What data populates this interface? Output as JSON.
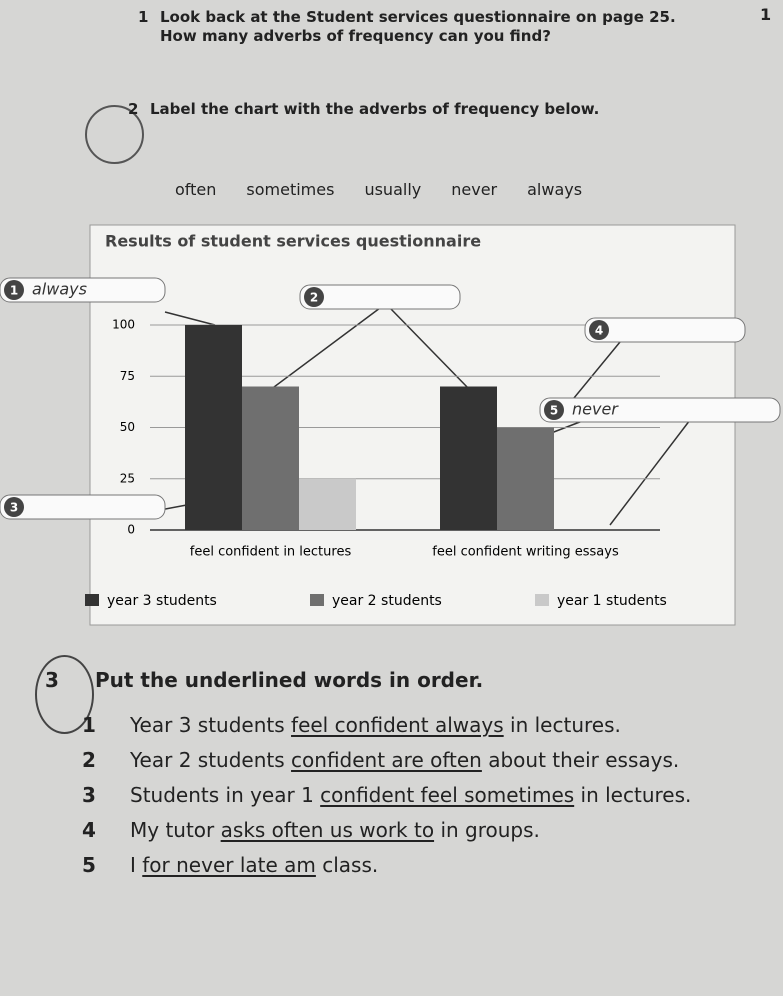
{
  "page_number": "1",
  "exercises": [
    {
      "number": "1",
      "text": "Look back at the Student services questionnaire on page 25. How many adverbs of frequency can you find?"
    },
    {
      "number": "2",
      "text": "Label the chart with the adverbs of frequency below."
    }
  ],
  "word_bank": [
    "often",
    "sometimes",
    "usually",
    "never",
    "always"
  ],
  "chart_data": {
    "type": "bar",
    "title": "Results of student services questionnaire",
    "categories": [
      "feel confident in lectures",
      "feel confident writing essays"
    ],
    "series": [
      {
        "name": "year 3 students",
        "color": "#333333",
        "values": [
          100,
          70
        ]
      },
      {
        "name": "year 2 students",
        "color": "#6f6f6f",
        "values": [
          70,
          50
        ]
      },
      {
        "name": "year 1 students",
        "color": "#c9c9c9",
        "values": [
          25,
          0
        ]
      }
    ],
    "ylim": [
      0,
      100
    ],
    "yticks": [
      0,
      25,
      50,
      75,
      100
    ],
    "grid": true,
    "callouts": [
      {
        "number": "1",
        "text": "always"
      },
      {
        "number": "2"
      },
      {
        "number": "3"
      },
      {
        "number": "4"
      },
      {
        "number": "5",
        "text": "never"
      }
    ]
  },
  "exercise_3": {
    "number": "3",
    "title": "Put the underlined words in order.",
    "items": [
      {
        "number": "1",
        "before": "Year 3 students",
        "underlined": "feel confident always",
        "after": "in lectures."
      },
      {
        "number": "2",
        "before": "Year 2 students",
        "underlined": "confident are often",
        "after": "about their essays."
      },
      {
        "number": "3",
        "before": "Students in year 1",
        "underlined": "confident feel sometimes",
        "after": "in lectures."
      },
      {
        "number": "4",
        "before": "My tutor",
        "underlined": "asks often us work to",
        "after": "in groups."
      },
      {
        "number": "5",
        "before": "I",
        "underlined": "for never late am",
        "after": "class."
      }
    ]
  }
}
